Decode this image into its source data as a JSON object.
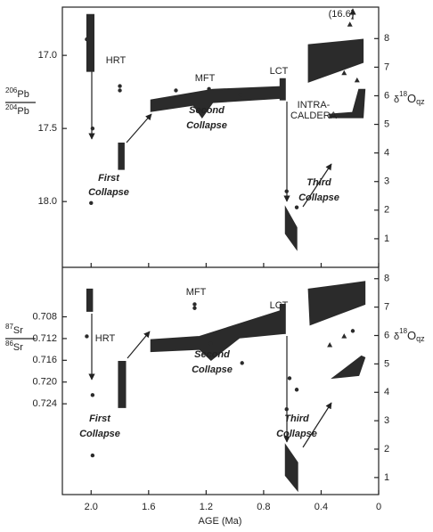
{
  "chart_data": [
    {
      "type": "scatter",
      "ylabel": {
        "num_sup": "206",
        "num": "Pb",
        "den_sup": "204",
        "den": "Pb"
      },
      "y2label": {
        "symbol": "δ",
        "sup": "18",
        "base": "O",
        "sub": "qz"
      },
      "xlim": [
        2.2,
        0
      ],
      "xticks": [
        2,
        1.6,
        1.2,
        0.8,
        0.4,
        0
      ],
      "ylim": [
        18.45,
        16.67
      ],
      "yticks": [
        {
          "value": 17,
          "label": "17.0"
        },
        17.5,
        {
          "value": 18,
          "label": "18.0"
        }
      ],
      "y2lim": [
        0,
        9.1
      ],
      "y2ticks": [
        1,
        2,
        3,
        4,
        5,
        6,
        7,
        8
      ],
      "color": "#2b2b2b",
      "points": {
        "x": [
          2.03,
          1.99,
          2.0,
          1.8,
          1.8,
          1.41,
          1.18,
          0.96,
          0.64,
          0.57
        ],
        "values": [
          16.89,
          17.5,
          18.01,
          17.21,
          17.24,
          17.24,
          17.23,
          17.27,
          17.93,
          18.04
        ]
      },
      "triangles": {
        "axis": "y2",
        "x": [
          0.2,
          0.24,
          0.15
        ],
        "values": [
          8.5,
          6.8,
          6.55
        ]
      },
      "shapes": [
        {
          "x": [
            2.03,
            1.98,
            1.98,
            2.03
          ],
          "y": [
            16.72,
            16.72,
            17.11,
            17.11
          ]
        },
        {
          "x": [
            1.81,
            1.77,
            1.77,
            1.81
          ],
          "y": [
            17.6,
            17.6,
            17.78,
            17.78
          ]
        },
        {
          "x": [
            1.585,
            1.154,
            0.662,
            0.662,
            1.154,
            1.228,
            1.289,
            1.585
          ],
          "y": [
            17.305,
            17.232,
            17.213,
            17.293,
            17.323,
            17.427,
            17.341,
            17.384
          ]
        },
        {
          "x": [
            0.686,
            0.649,
            0.649,
            0.686
          ],
          "y": [
            17.159,
            17.159,
            17.305,
            17.305
          ]
        },
        {
          "x": [
            0.649,
            0.569,
            0.569,
            0.649
          ],
          "y": [
            18.037,
            18.177,
            18.329,
            18.22
          ]
        },
        {
          "x": [
            0.489,
            0.108,
            0.108,
            0.489
          ],
          "y": [
            16.927,
            16.89,
            17.049,
            17.183
          ]
        },
        {
          "x": [
            0.342,
            0.182,
            0.138,
            0.095,
            0.108,
            0.342
          ],
          "y": [
            17.402,
            17.39,
            17.232,
            17.232,
            17.427,
            17.427
          ]
        }
      ],
      "annotations": [
        "HRT",
        "MFT",
        "LCT",
        "Second",
        "Collapse",
        "First",
        "Collapse",
        "Third",
        "Collapse",
        "INTRA-",
        "CALDERA",
        "(16.6)"
      ]
    },
    {
      "type": "scatter",
      "ylabel": {
        "num_sup": "87",
        "num": "Sr",
        "den_sup": "86",
        "den": "Sr"
      },
      "y2label": {
        "symbol": "δ",
        "sup": "18",
        "base": "O",
        "sub": "qz"
      },
      "xlabel": "AGE (Ma)",
      "xlim": [
        2.2,
        0
      ],
      "xticks": [
        {
          "value": 2,
          "label": "2.0"
        },
        1.6,
        1.2,
        0.8,
        0.4,
        0
      ],
      "ylim": [
        0.7407,
        0.6989
      ],
      "yticks": [
        0.708,
        0.712,
        0.716,
        {
          "value": 0.72,
          "label": "0.720"
        },
        0.724
      ],
      "y2lim": [
        0.4,
        8.4
      ],
      "y2ticks": [
        1,
        2,
        3,
        4,
        5,
        6,
        7,
        8
      ],
      "color": "#2b2b2b",
      "points": {
        "x": [
          2.03,
          1.99,
          1.99,
          1.28,
          1.28,
          1.17,
          0.95,
          0.62,
          0.57,
          0.64,
          0.18
        ],
        "values": [
          0.7116,
          0.7224,
          0.7335,
          0.7057,
          0.7064,
          0.7129,
          0.7165,
          0.7193,
          0.7214,
          0.725,
          0.7106
        ]
      },
      "triangles": {
        "axis": "y2",
        "x": [
          0.34,
          0.24
        ],
        "values": [
          5.67,
          5.98
        ]
      },
      "shapes": [
        {
          "x": [
            2.03,
            1.99,
            1.99,
            2.03
          ],
          "y": [
            0.7029,
            0.7029,
            0.707,
            0.707
          ]
        },
        {
          "x": [
            1.81,
            1.76,
            1.76,
            1.81
          ],
          "y": [
            0.7162,
            0.7162,
            0.7247,
            0.7247
          ]
        },
        {
          "x": [
            1.585,
            1.246,
            0.662,
            0.662,
            0.969,
            1.166,
            1.246,
            1.585
          ],
          "y": [
            0.7122,
            0.7116,
            0.7067,
            0.7111,
            0.7119,
            0.716,
            0.714,
            0.7144
          ]
        },
        {
          "x": [
            0.686,
            0.649,
            0.649,
            0.686
          ],
          "y": [
            0.7057,
            0.7057,
            0.7111,
            0.7111
          ]
        },
        {
          "x": [
            0.649,
            0.563,
            0.563,
            0.649
          ],
          "y": [
            0.7315,
            0.7348,
            0.74,
            0.7372
          ]
        },
        {
          "x": [
            0.489,
            0.095,
            0.095,
            0.477
          ],
          "y": [
            0.7029,
            0.7015,
            0.7057,
            0.7095
          ]
        },
        {
          "x": [
            0.323,
            0.12,
            0.095,
            0.138
          ],
          "y": [
            0.7193,
            0.7152,
            0.7155,
            0.7188
          ]
        }
      ],
      "annotations": [
        "HRT",
        "MFT",
        "LCT",
        "Second",
        "Collapse",
        "First",
        "Collapse",
        "Third",
        "Collapse"
      ]
    }
  ]
}
